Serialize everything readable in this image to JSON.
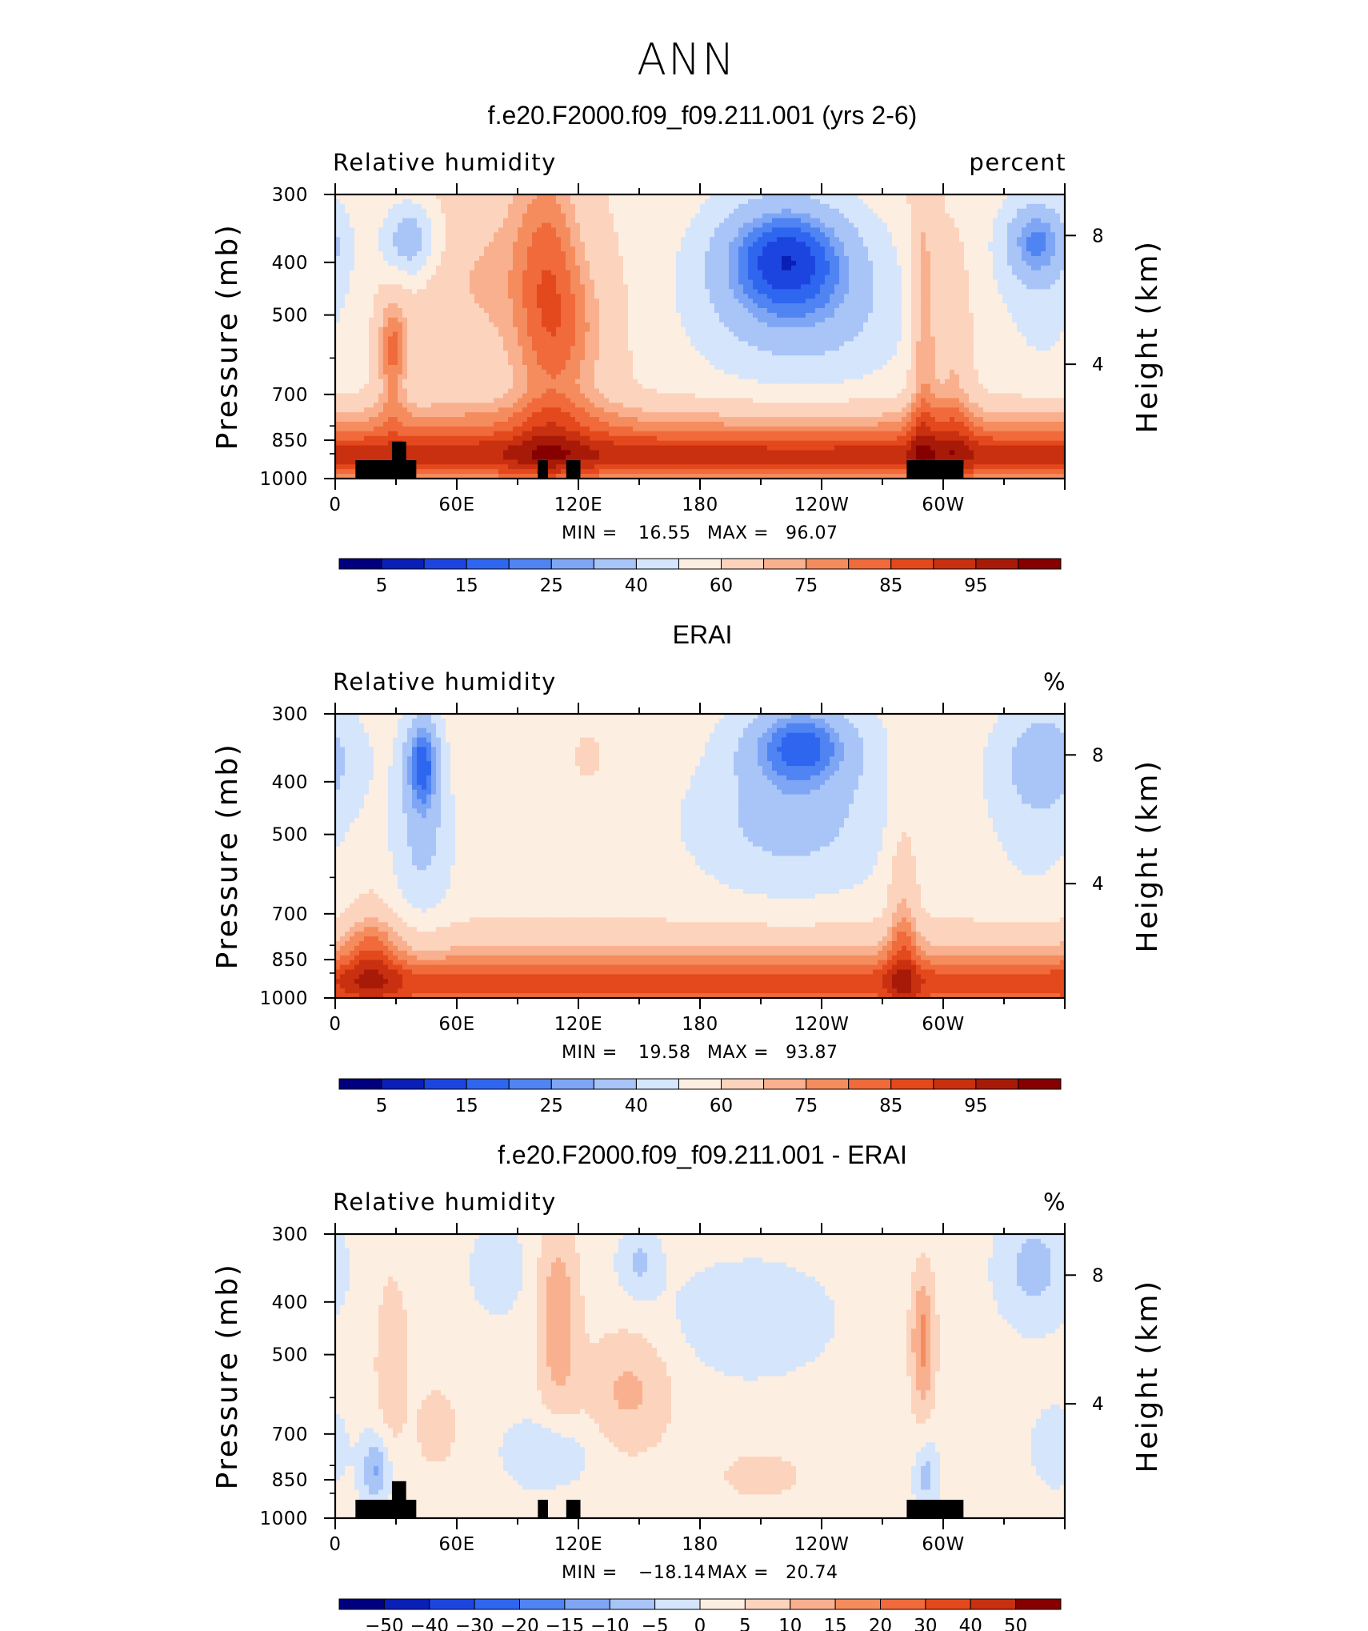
{
  "figure": {
    "title": "ANN",
    "panel_count": 3
  },
  "chart_data": [
    {
      "type": "heatmap",
      "title": "f.e20.F2000.f09_f09.211.001 (yrs 2-6)",
      "field_label": "Relative humidity",
      "units_label": "percent",
      "ylabel": "Pressure (mb)",
      "ylabel2": "Height (km)",
      "x_ticks": [
        "0",
        "60E",
        "120E",
        "180",
        "120W",
        "60W"
      ],
      "x_lon": [
        0,
        60,
        120,
        180,
        240,
        300
      ],
      "xlim": [
        0,
        360
      ],
      "y_ticks": [
        "300",
        "400",
        "500",
        "700",
        "850",
        "1000"
      ],
      "y_values": [
        300,
        400,
        500,
        700,
        850,
        1000
      ],
      "ylim": [
        1000,
        300
      ],
      "y_scale": "log",
      "y2_ticks": [
        "8",
        "4"
      ],
      "y2_values": [
        8,
        4
      ],
      "stats": {
        "min_label": "MIN =",
        "min": "16.55",
        "max_label": "MAX =",
        "max": "96.07"
      },
      "colorbar": {
        "labels": [
          "5",
          "15",
          "25",
          "40",
          "60",
          "75",
          "85",
          "95"
        ],
        "colors": [
          "#00007f",
          "#0a1fb5",
          "#1c45e0",
          "#2f66f0",
          "#4f84f2",
          "#7ea6f5",
          "#a9c4f7",
          "#d5e5fb",
          "#fdeee2",
          "#fcd3bd",
          "#f9b08f",
          "#f58c5e",
          "#f06a3b",
          "#e3491c",
          "#c83010",
          "#a81a08",
          "#860000"
        ]
      },
      "field_fn": "rh_model",
      "has_topography": true
    },
    {
      "type": "heatmap",
      "title": "ERAI",
      "field_label": "Relative humidity",
      "units_label": "%",
      "ylabel": "Pressure (mb)",
      "ylabel2": "Height (km)",
      "x_ticks": [
        "0",
        "60E",
        "120E",
        "180",
        "120W",
        "60W"
      ],
      "x_lon": [
        0,
        60,
        120,
        180,
        240,
        300
      ],
      "xlim": [
        0,
        360
      ],
      "y_ticks": [
        "300",
        "400",
        "500",
        "700",
        "850",
        "1000"
      ],
      "y_values": [
        300,
        400,
        500,
        700,
        850,
        1000
      ],
      "ylim": [
        1000,
        300
      ],
      "y_scale": "log",
      "y2_ticks": [
        "8",
        "4"
      ],
      "y2_values": [
        8,
        4
      ],
      "stats": {
        "min_label": "MIN =",
        "min": "19.58",
        "max_label": "MAX =",
        "max": "93.87"
      },
      "colorbar": {
        "labels": [
          "5",
          "15",
          "25",
          "40",
          "60",
          "75",
          "85",
          "95"
        ],
        "colors": [
          "#00007f",
          "#0a1fb5",
          "#1c45e0",
          "#2f66f0",
          "#4f84f2",
          "#7ea6f5",
          "#a9c4f7",
          "#d5e5fb",
          "#fdeee2",
          "#fcd3bd",
          "#f9b08f",
          "#f58c5e",
          "#f06a3b",
          "#e3491c",
          "#c83010",
          "#a81a08",
          "#860000"
        ]
      },
      "field_fn": "rh_obs",
      "has_topography": false
    },
    {
      "type": "heatmap",
      "title": "f.e20.F2000.f09_f09.211.001 - ERAI",
      "field_label": "Relative humidity",
      "units_label": "%",
      "ylabel": "Pressure (mb)",
      "ylabel2": "Height (km)",
      "x_ticks": [
        "0",
        "60E",
        "120E",
        "180",
        "120W",
        "60W"
      ],
      "x_lon": [
        0,
        60,
        120,
        180,
        240,
        300
      ],
      "xlim": [
        0,
        360
      ],
      "y_ticks": [
        "300",
        "400",
        "500",
        "700",
        "850",
        "1000"
      ],
      "y_values": [
        300,
        400,
        500,
        700,
        850,
        1000
      ],
      "ylim": [
        1000,
        300
      ],
      "y_scale": "log",
      "y2_ticks": [
        "8",
        "4"
      ],
      "y2_values": [
        8,
        4
      ],
      "stats": {
        "min_label": "MIN =",
        "min": "−18.14",
        "max_label": "MAX =",
        "max": "20.74"
      },
      "colorbar": {
        "labels": [
          "−50",
          "−40",
          "−30",
          "−20",
          "−15",
          "−10",
          "−5",
          "0",
          "5",
          "10",
          "15",
          "20",
          "30",
          "40",
          "50"
        ],
        "colors": [
          "#00007f",
          "#0a1fb5",
          "#1c45e0",
          "#2f66f0",
          "#4f84f2",
          "#7ea6f5",
          "#a9c4f7",
          "#d5e5fb",
          "#fdeee2",
          "#fcd3bd",
          "#f9b08f",
          "#f58c5e",
          "#f06a3b",
          "#e3491c",
          "#c83010",
          "#860000"
        ]
      },
      "field_fn": "rh_diff",
      "has_topography": true
    }
  ]
}
